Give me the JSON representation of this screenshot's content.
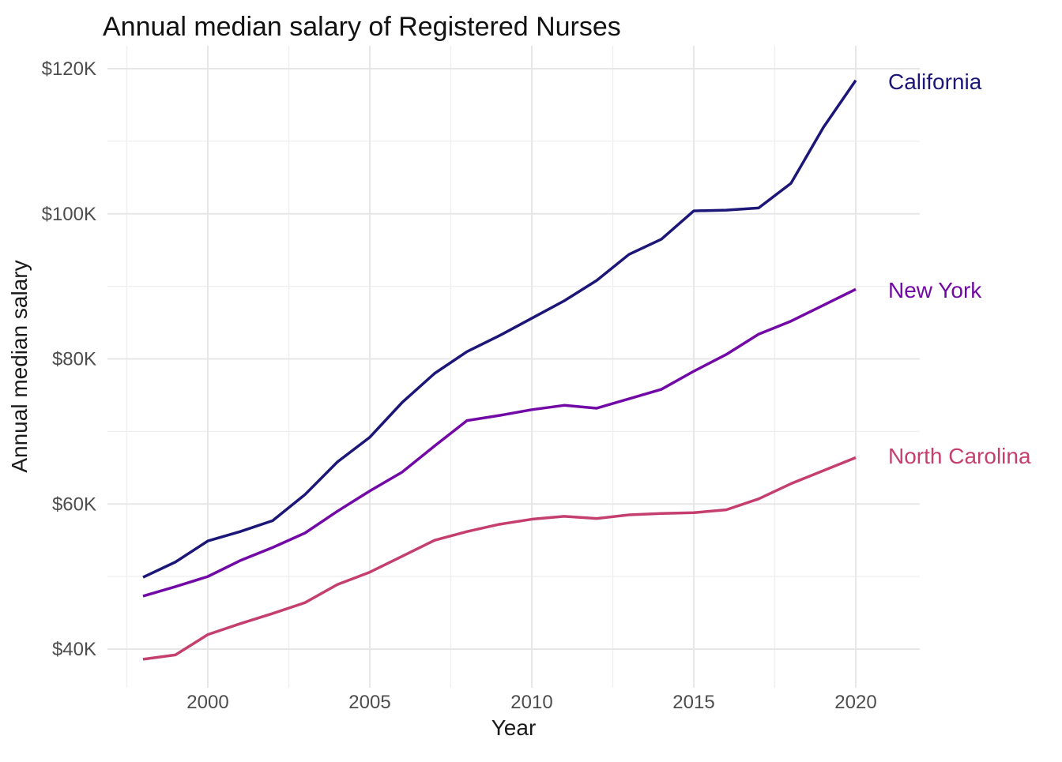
{
  "page": {
    "title": "Annual median salary of Registered Nurses"
  },
  "chart_data": {
    "type": "line",
    "title": "Annual median salary of Registered Nurses",
    "xlabel": "Year",
    "ylabel": "Annual median salary",
    "unit": "USD per year",
    "x_ticks": [
      "2000",
      "2005",
      "2010",
      "2015",
      "2020"
    ],
    "x_tick_years": [
      2000,
      2005,
      2010,
      2015,
      2020
    ],
    "x_minor_years": [
      1997.5,
      2002.5,
      2007.5,
      2012.5,
      2017.5
    ],
    "y_ticks": [
      "$40K",
      "$60K",
      "$80K",
      "$100K",
      "$120K"
    ],
    "y_tick_values": [
      40000,
      60000,
      80000,
      100000,
      120000
    ],
    "y_minor_values": [
      50000,
      70000,
      90000,
      110000
    ],
    "xlim": [
      1997,
      2021
    ],
    "ylim": [
      38000,
      120000
    ],
    "grid": "major+minor",
    "legend": "direct-labels-right",
    "years": [
      1998,
      1999,
      2000,
      2001,
      2002,
      2003,
      2004,
      2005,
      2006,
      2007,
      2008,
      2009,
      2010,
      2011,
      2012,
      2013,
      2014,
      2015,
      2016,
      2017,
      2018,
      2019,
      2020
    ],
    "series": [
      {
        "name": "California",
        "color": "#1b1677",
        "values": [
          49900,
          52000,
          54900,
          56200,
          57700,
          61300,
          65800,
          69200,
          74000,
          78000,
          81000,
          83200,
          85600,
          88000,
          90800,
          94400,
          96500,
          100400,
          100500,
          100800,
          104200,
          111900,
          118400
        ]
      },
      {
        "name": "New York",
        "color": "#7209a6",
        "values": [
          47300,
          48600,
          50000,
          52200,
          54000,
          56000,
          59000,
          61800,
          64400,
          68000,
          71500,
          72200,
          73000,
          73600,
          73200,
          74500,
          75800,
          78300,
          80600,
          83400,
          85200,
          87400,
          89600
        ]
      },
      {
        "name": "North Carolina",
        "color": "#c53f6e",
        "values": [
          38600,
          39200,
          42000,
          43500,
          44900,
          46400,
          48900,
          50600,
          52800,
          55000,
          56200,
          57200,
          57900,
          58300,
          58000,
          58500,
          58700,
          58800,
          59200,
          60700,
          62800,
          64600,
          66400
        ]
      }
    ]
  }
}
